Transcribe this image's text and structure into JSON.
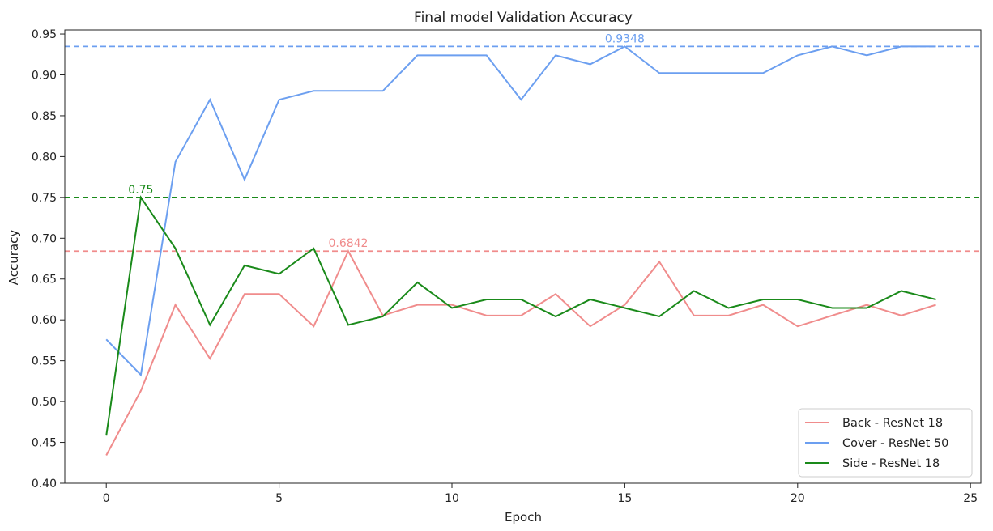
{
  "chart_data": {
    "type": "line",
    "title": "Final model Validation Accuracy",
    "xlabel": "Epoch",
    "ylabel": "Accuracy",
    "xlim": [
      -1.2,
      25.3
    ],
    "ylim": [
      0.4,
      0.955
    ],
    "xticks": [
      0,
      5,
      10,
      15,
      20,
      25
    ],
    "yticks": [
      0.4,
      0.45,
      0.5,
      0.55,
      0.6,
      0.65,
      0.7,
      0.75,
      0.8,
      0.85,
      0.9,
      0.95
    ],
    "grid": false,
    "legend_position": "lower-right",
    "x": [
      0,
      1,
      2,
      3,
      4,
      5,
      6,
      7,
      8,
      9,
      10,
      11,
      12,
      13,
      14,
      15,
      16,
      17,
      18,
      19,
      20,
      21,
      22,
      23,
      24
    ],
    "series": [
      {
        "name": "Back - ResNet 18",
        "color": "#f08c8c",
        "values": [
          0.4342,
          0.5132,
          0.6184,
          0.5526,
          0.6316,
          0.6316,
          0.5921,
          0.6842,
          0.6053,
          0.6184,
          0.6184,
          0.6053,
          0.6053,
          0.6316,
          0.5921,
          0.6184,
          0.6711,
          0.6053,
          0.6053,
          0.6184,
          0.5921,
          0.6053,
          0.6184,
          0.6053,
          0.6184
        ],
        "max_line": {
          "value": 0.6842,
          "label": "0.6842",
          "label_x": 7
        }
      },
      {
        "name": "Cover - ResNet 50",
        "color": "#6c9ff0",
        "values": [
          0.5761,
          0.5326,
          0.7935,
          0.8696,
          0.7717,
          0.8696,
          0.8804,
          0.8804,
          0.8804,
          0.9239,
          0.9239,
          0.9239,
          0.8696,
          0.9239,
          0.913,
          0.9348,
          0.9022,
          0.9022,
          0.9022,
          0.9022,
          0.9239,
          0.9348,
          0.9239,
          0.9348,
          0.9348
        ],
        "max_line": {
          "value": 0.9348,
          "label": "0.9348",
          "label_x": 15
        }
      },
      {
        "name": "Side - ResNet 18",
        "color": "#1a8a1a",
        "values": [
          0.4583,
          0.75,
          0.6875,
          0.5938,
          0.6667,
          0.6563,
          0.6875,
          0.5938,
          0.6042,
          0.6458,
          0.6146,
          0.625,
          0.625,
          0.6042,
          0.625,
          0.6146,
          0.6042,
          0.6354,
          0.6146,
          0.625,
          0.625,
          0.6146,
          0.6146,
          0.6354,
          0.625
        ],
        "max_line": {
          "value": 0.75,
          "label": "0.75",
          "label_x": 1
        }
      }
    ]
  }
}
